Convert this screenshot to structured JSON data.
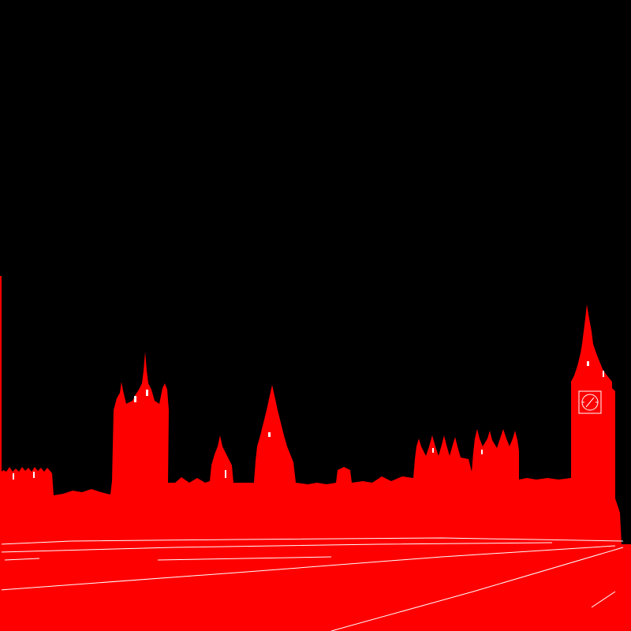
{
  "scene": {
    "subject": "houses-of-parliament-silhouette",
    "colors": {
      "background": "#000000",
      "silhouette": "#ff0000",
      "outline": "#ffffff"
    }
  }
}
